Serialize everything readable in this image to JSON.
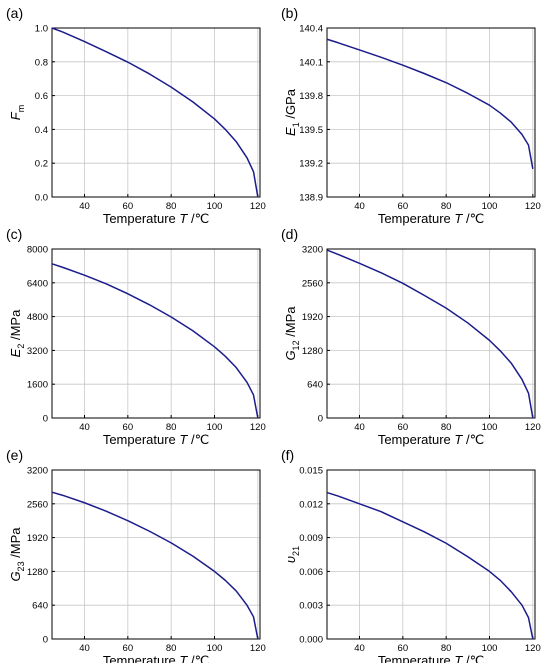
{
  "figure": {
    "panels": [
      {
        "id": "a",
        "label": "(a)",
        "ylabel": {
          "main": "F",
          "sub": "m",
          "unit": ""
        },
        "xlabel": "Temperature",
        "xvar": "T",
        "xunit": "/℃"
      },
      {
        "id": "b",
        "label": "(b)",
        "ylabel": {
          "main": "E",
          "sub": "1",
          "unit": " /GPa"
        },
        "xlabel": "Temperature",
        "xvar": "T",
        "xunit": "/℃"
      },
      {
        "id": "c",
        "label": "(c)",
        "ylabel": {
          "main": "E",
          "sub": "2",
          "unit": " /MPa"
        },
        "xlabel": "Temperature",
        "xvar": "T",
        "xunit": "/℃"
      },
      {
        "id": "d",
        "label": "(d)",
        "ylabel": {
          "main": "G",
          "sub": "12",
          "unit": " /MPa"
        },
        "xlabel": "Temperature",
        "xvar": "T",
        "xunit": "/℃"
      },
      {
        "id": "e",
        "label": "(e)",
        "ylabel": {
          "main": "G",
          "sub": "23",
          "unit": " /MPa"
        },
        "xlabel": "Temperature",
        "xvar": "T",
        "xunit": "/℃"
      },
      {
        "id": "f",
        "label": "(f)",
        "ylabel": {
          "main": "υ",
          "sub": "21",
          "unit": ""
        },
        "xlabel": "Temperature",
        "xvar": "T",
        "xunit": "/℃"
      }
    ]
  },
  "chart_data": [
    {
      "type": "line",
      "title": "",
      "xlabel": "Temperature T /℃",
      "ylabel": "Fm",
      "xlim": [
        25,
        121
      ],
      "ylim": [
        0,
        1.0
      ],
      "xticks": [
        "40",
        "60",
        "80",
        "100",
        "120"
      ],
      "yticks": [
        "0.0",
        "0.2",
        "0.4",
        "0.6",
        "0.8",
        "1.0"
      ],
      "grid": true,
      "line_color": "#1c1c8c",
      "series": [
        {
          "x": [
            25,
            30,
            40,
            50,
            60,
            70,
            80,
            90,
            100,
            105,
            110,
            115,
            118,
            120
          ],
          "y": [
            1.0,
            0.976,
            0.92,
            0.86,
            0.798,
            0.728,
            0.65,
            0.563,
            0.462,
            0.4,
            0.328,
            0.232,
            0.15,
            0.0
          ]
        }
      ]
    },
    {
      "type": "line",
      "title": "",
      "xlabel": "Temperature T /℃",
      "ylabel": "E1 /GPa",
      "xlim": [
        25,
        121
      ],
      "ylim": [
        138.9,
        140.4
      ],
      "xticks": [
        "40",
        "60",
        "80",
        "100",
        "120"
      ],
      "yticks": [
        "138.9",
        "139.2",
        "139.5",
        "139.8",
        "140.1",
        "140.4"
      ],
      "grid": true,
      "line_color": "#1c1c8c",
      "series": [
        {
          "x": [
            25,
            30,
            40,
            50,
            60,
            70,
            80,
            90,
            100,
            105,
            110,
            115,
            118,
            120
          ],
          "y": [
            140.3,
            140.27,
            140.205,
            140.14,
            140.07,
            139.995,
            139.915,
            139.82,
            139.715,
            139.645,
            139.565,
            139.455,
            139.36,
            139.15
          ]
        }
      ]
    },
    {
      "type": "line",
      "title": "",
      "xlabel": "Temperature T /℃",
      "ylabel": "E2 /MPa",
      "xlim": [
        25,
        121
      ],
      "ylim": [
        0,
        8000
      ],
      "xticks": [
        "40",
        "60",
        "80",
        "100",
        "120"
      ],
      "yticks": [
        "0",
        "1600",
        "3200",
        "4800",
        "6400",
        "8000"
      ],
      "grid": true,
      "line_color": "#1c1c8c",
      "series": [
        {
          "x": [
            25,
            30,
            40,
            50,
            60,
            70,
            80,
            90,
            100,
            105,
            110,
            115,
            118,
            120
          ],
          "y": [
            7300,
            7130,
            6760,
            6350,
            5880,
            5360,
            4780,
            4130,
            3370,
            2920,
            2390,
            1690,
            1090,
            0
          ]
        }
      ]
    },
    {
      "type": "line",
      "title": "",
      "xlabel": "Temperature T /℃",
      "ylabel": "G12 /MPa",
      "xlim": [
        25,
        121
      ],
      "ylim": [
        0,
        3200
      ],
      "xticks": [
        "40",
        "60",
        "80",
        "100",
        "120"
      ],
      "yticks": [
        "0",
        "640",
        "1280",
        "1920",
        "2560",
        "3200"
      ],
      "grid": true,
      "line_color": "#1c1c8c",
      "series": [
        {
          "x": [
            25,
            30,
            40,
            50,
            60,
            70,
            80,
            90,
            100,
            105,
            110,
            115,
            118,
            120
          ],
          "y": [
            3180,
            3100,
            2930,
            2750,
            2550,
            2320,
            2080,
            1800,
            1470,
            1270,
            1040,
            730,
            470,
            0
          ]
        }
      ]
    },
    {
      "type": "line",
      "title": "",
      "xlabel": "Temperature T /℃",
      "ylabel": "G23 /MPa",
      "xlim": [
        25,
        121
      ],
      "ylim": [
        0,
        3200
      ],
      "xticks": [
        "40",
        "60",
        "80",
        "100",
        "120"
      ],
      "yticks": [
        "0",
        "640",
        "1280",
        "1920",
        "2560",
        "3200"
      ],
      "grid": true,
      "line_color": "#1c1c8c",
      "series": [
        {
          "x": [
            25,
            30,
            40,
            50,
            60,
            70,
            80,
            90,
            100,
            105,
            110,
            115,
            118,
            120
          ],
          "y": [
            2780,
            2720,
            2580,
            2420,
            2240,
            2040,
            1820,
            1570,
            1280,
            1110,
            910,
            640,
            420,
            0
          ]
        }
      ]
    },
    {
      "type": "line",
      "title": "",
      "xlabel": "Temperature T /℃",
      "ylabel": "υ21",
      "xlim": [
        25,
        121
      ],
      "ylim": [
        0,
        0.015
      ],
      "xticks": [
        "40",
        "60",
        "80",
        "100",
        "120"
      ],
      "yticks": [
        "0.000",
        "0.003",
        "0.006",
        "0.009",
        "0.012",
        "0.015"
      ],
      "grid": true,
      "line_color": "#1c1c8c",
      "series": [
        {
          "x": [
            25,
            30,
            40,
            50,
            60,
            70,
            80,
            90,
            100,
            105,
            110,
            115,
            118,
            120
          ],
          "y": [
            0.013,
            0.0127,
            0.012,
            0.0113,
            0.0104,
            0.0095,
            0.0085,
            0.0073,
            0.006,
            0.0052,
            0.0042,
            0.003,
            0.0019,
            0.0
          ]
        }
      ]
    }
  ]
}
